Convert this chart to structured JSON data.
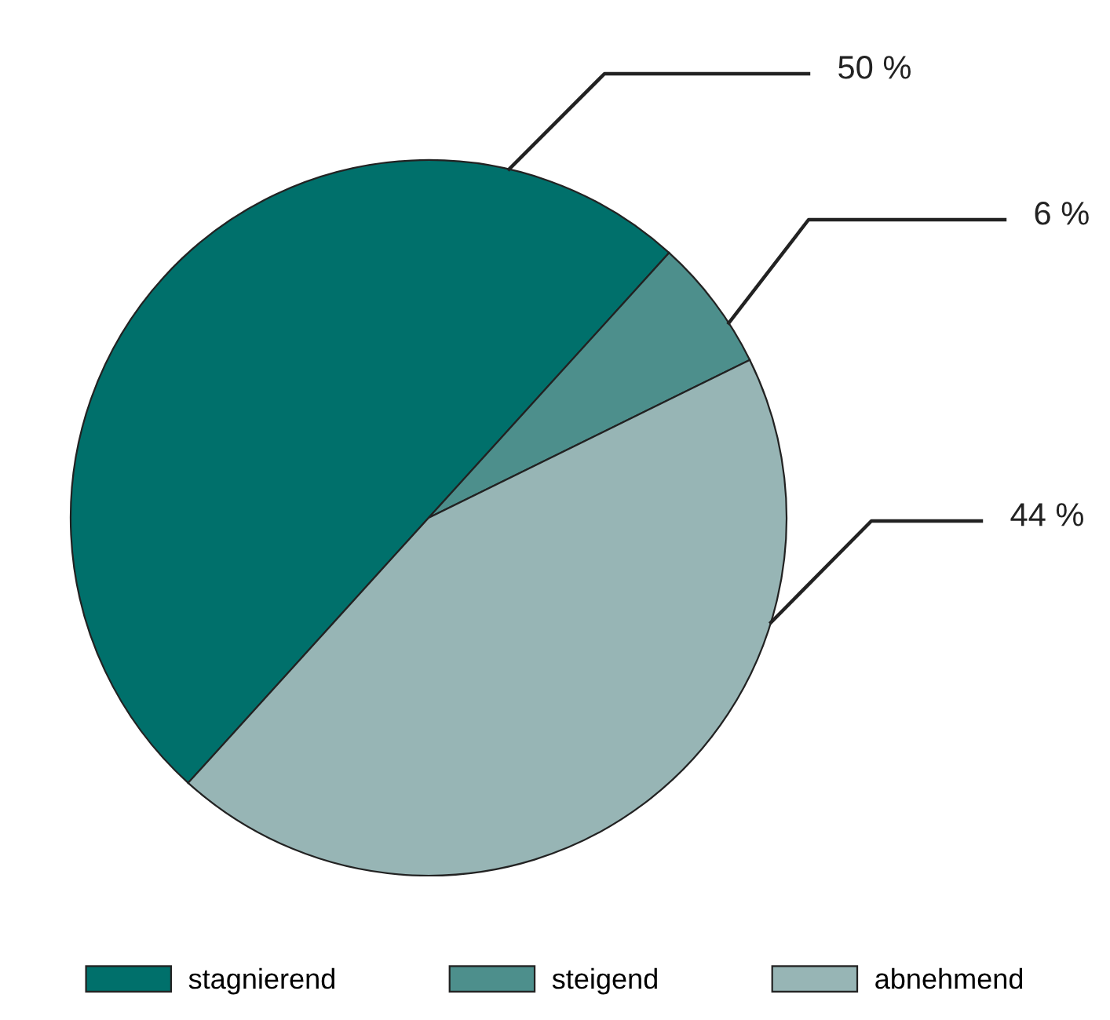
{
  "chart_data": {
    "type": "pie",
    "categories": [
      "stagnierend",
      "steigend",
      "abnehmend"
    ],
    "values": [
      50,
      6,
      44
    ],
    "colors": [
      "#00706b",
      "#4d8f8c",
      "#97b5b5"
    ],
    "value_labels": [
      "50 %",
      "6 %",
      "44 %"
    ],
    "legend": "bottom"
  }
}
